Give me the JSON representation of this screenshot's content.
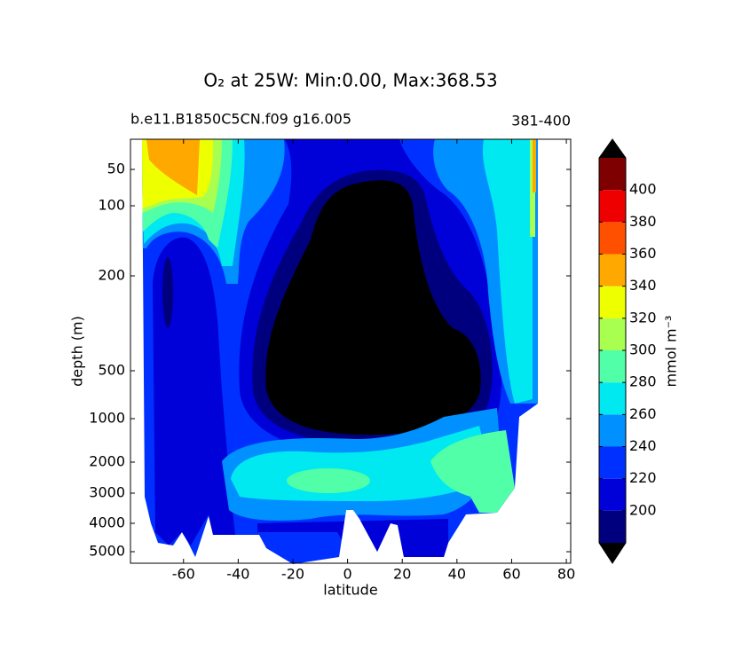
{
  "chart_data": {
    "type": "contourf",
    "title": "O₂ at 25W: Min:0.00, Max:368.53",
    "subtitle_left": "b.e11.B1850C5CN.f09 g16.005",
    "subtitle_right": "381-400",
    "xlabel": "latitude",
    "ylabel": "depth (m)",
    "xlim": [
      -79.4,
      81.6
    ],
    "xticks": [
      -60,
      -40,
      -20,
      0,
      20,
      40,
      60,
      80
    ],
    "ylim": [
      10,
      5400
    ],
    "y_inverted": true,
    "yticks": [
      50,
      100,
      200,
      500,
      1000,
      2000,
      3000,
      4000,
      5000
    ],
    "colorbar": {
      "label": "mmol m⁻³",
      "levels": [
        180,
        200,
        220,
        240,
        260,
        280,
        300,
        320,
        340,
        360,
        380,
        400,
        420
      ],
      "colors": [
        "#00007f",
        "#0000d8",
        "#0030ff",
        "#0090ff",
        "#00e8f0",
        "#50ffa8",
        "#a8ff50",
        "#eeff00",
        "#ffa800",
        "#ff5000",
        "#ee0000",
        "#7f0000"
      ],
      "extend_colors": {
        "under": "#000000",
        "over": "#000000"
      },
      "ticks": [
        200,
        220,
        240,
        260,
        280,
        300,
        320,
        340,
        360,
        380,
        400
      ]
    }
  }
}
